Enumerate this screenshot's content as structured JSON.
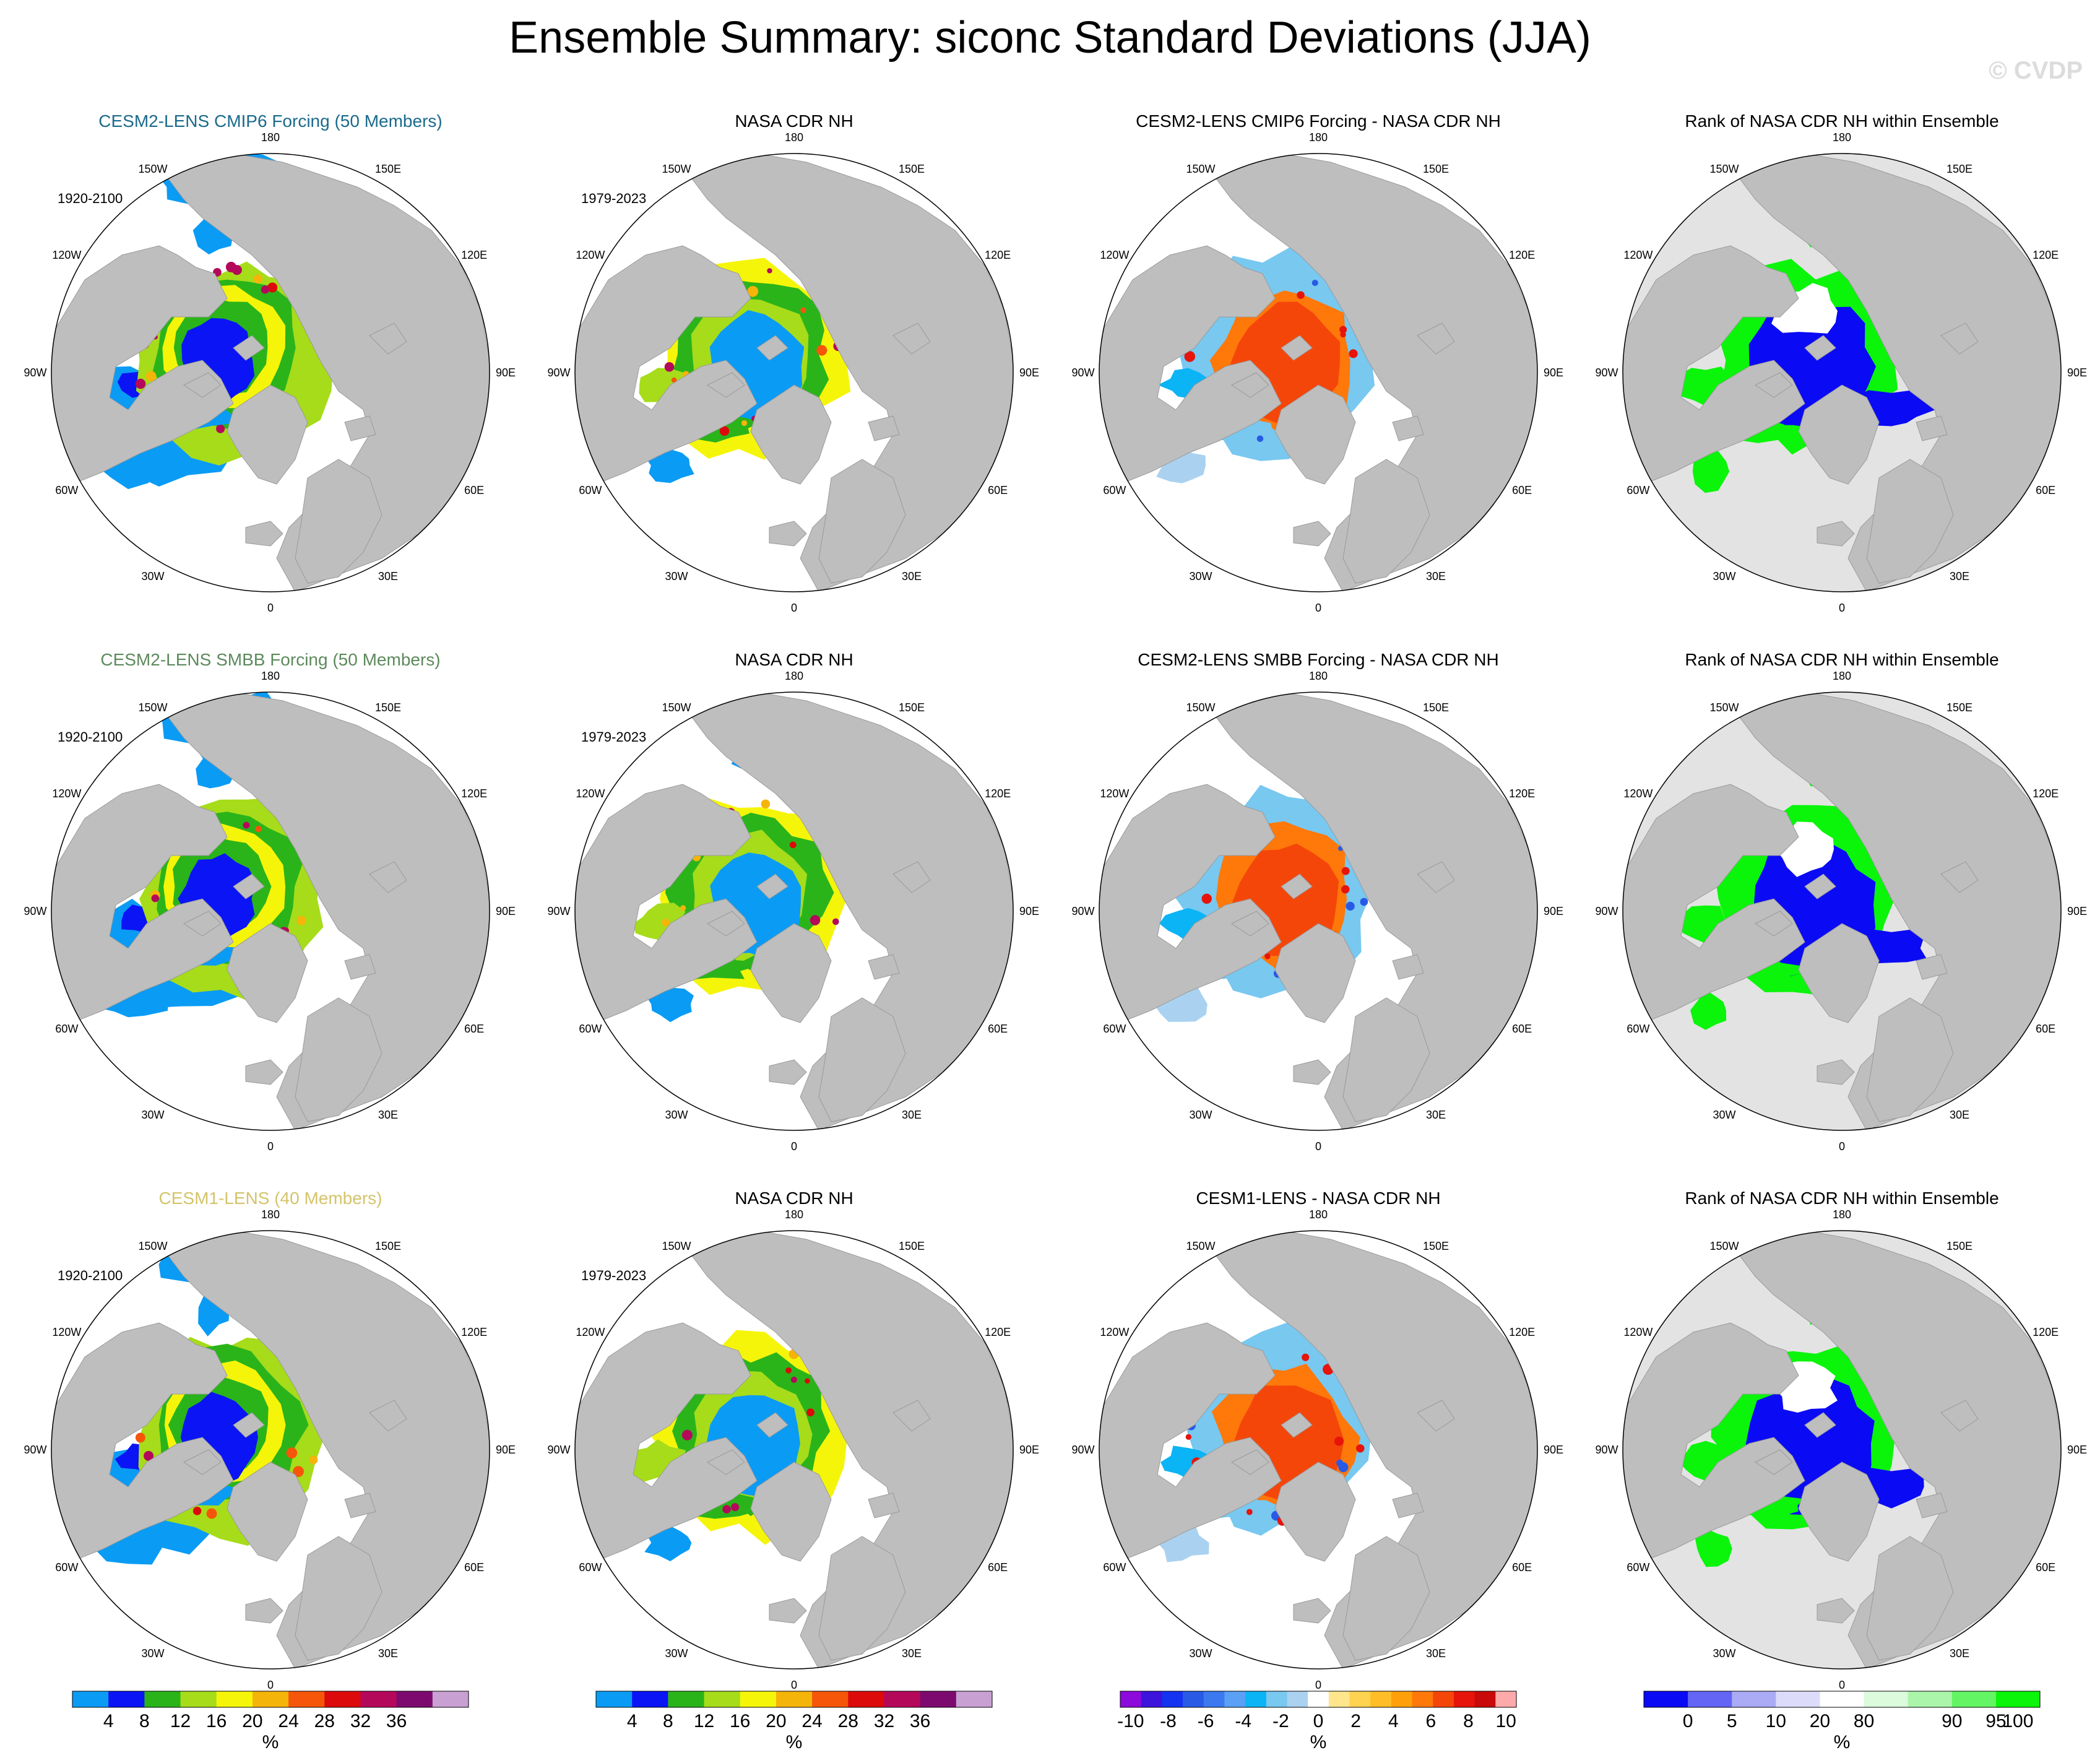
{
  "figure": {
    "title": "Ensemble Summary: siconc Standard Deviations (JJA)",
    "watermark": "© CVDP"
  },
  "rows": [
    {
      "ensemble": {
        "title": "CESM2-LENS CMIP6 Forcing (50 Members)",
        "color": "#1a6a8c",
        "period": "1920-2100"
      },
      "obs": {
        "title": "NASA CDR NH",
        "period": "1979-2023"
      },
      "diff": {
        "title": "CESM2-LENS CMIP6 Forcing - NASA CDR NH"
      },
      "rank": {
        "title": "Rank of NASA CDR NH within Ensemble"
      }
    },
    {
      "ensemble": {
        "title": "CESM2-LENS SMBB Forcing (50 Members)",
        "color": "#5d8a5d",
        "period": "1920-2100"
      },
      "obs": {
        "title": "NASA CDR NH",
        "period": "1979-2023"
      },
      "diff": {
        "title": "CESM2-LENS SMBB Forcing - NASA CDR NH"
      },
      "rank": {
        "title": "Rank of NASA CDR NH within Ensemble"
      }
    },
    {
      "ensemble": {
        "title": "CESM1-LENS (40 Members)",
        "color": "#d4c46a",
        "period": "1920-2100"
      },
      "obs": {
        "title": "NASA CDR NH",
        "period": "1979-2023"
      },
      "diff": {
        "title": "CESM1-LENS - NASA CDR NH"
      },
      "rank": {
        "title": "Rank of NASA CDR NH within Ensemble"
      }
    }
  ],
  "map": {
    "projection": "north polar stereographic",
    "longitude_labels": [
      "180",
      "150E",
      "120E",
      "90E",
      "60E",
      "30E",
      "0",
      "30W",
      "60W",
      "90W",
      "120W",
      "150W"
    ],
    "land_color": "#bebebe",
    "ocean_color": "#ffffff",
    "outside_color": "#e3e3e3"
  },
  "colorbars": {
    "stddev": {
      "unit": "%",
      "labels": [
        "4",
        "8",
        "12",
        "16",
        "20",
        "24",
        "28",
        "32",
        "36"
      ],
      "colors": [
        "#0a9bf5",
        "#0a14f5",
        "#2ab41a",
        "#a6dc1a",
        "#f5f50a",
        "#f5b40a",
        "#f5560a",
        "#dc0a0a",
        "#b4095a",
        "#7d0a6e",
        "#c8a0d2"
      ]
    },
    "diff": {
      "unit": "%",
      "labels": [
        "-10",
        "-8",
        "-6",
        "-4",
        "-2",
        "0",
        "2",
        "4",
        "6",
        "8",
        "10"
      ],
      "colors": [
        "#8c0adc",
        "#3c14dc",
        "#1432f0",
        "#285ae6",
        "#3c78f0",
        "#5aa0f5",
        "#0ab4f5",
        "#78c8f0",
        "#aad2f0",
        "#ffffff",
        "#ffe68c",
        "#ffd250",
        "#ffbe28",
        "#ffa00a",
        "#ff780a",
        "#f5460a",
        "#e6140a",
        "#c80a0a",
        "#ffaaaa"
      ]
    },
    "rank": {
      "unit": "%",
      "labels": [
        "0",
        "5",
        "10",
        "20",
        "80",
        "90",
        "95",
        "100"
      ],
      "colors": [
        "#0a0af5",
        "#6464f5",
        "#aaaaf5",
        "#dcdcfa",
        "#ffffff",
        "#dcfadc",
        "#aaf5aa",
        "#64f564",
        "#0af50a"
      ]
    }
  }
}
